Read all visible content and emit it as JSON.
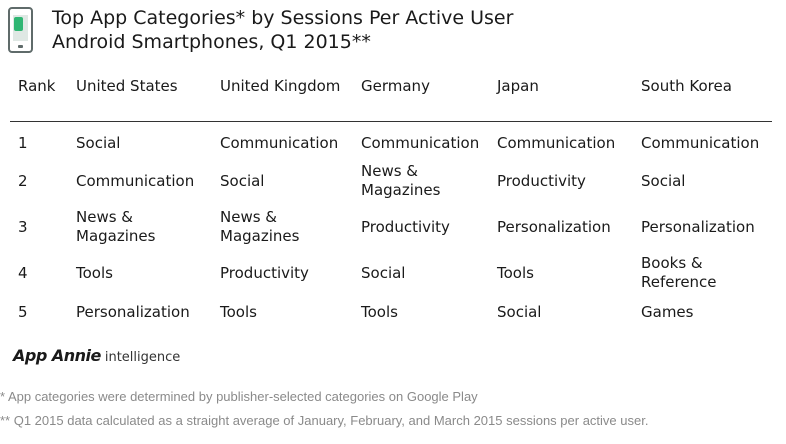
{
  "title_lines": [
    "Top App Categories* by Sessions Per Active User",
    "Android Smartphones, Q1 2015**"
  ],
  "icon": "smartphone-icon",
  "colors": {
    "accent": "#2fb673",
    "text": "#1a1a1a",
    "footnote": "#8a8a8a"
  },
  "chart_data": {
    "type": "table",
    "title": "Top App Categories* by Sessions Per Active User",
    "subtitle": "Android Smartphones, Q1 2015**",
    "columns": [
      "Rank",
      "United States",
      "United Kingdom",
      "Germany",
      "Japan",
      "South Korea"
    ],
    "rows": [
      [
        "1",
        "Social",
        "Communication",
        "Communication",
        "Communication",
        "Communication"
      ],
      [
        "2",
        "Communication",
        "Social",
        "News & Magazines",
        "Productivity",
        "Social"
      ],
      [
        "3",
        "News & Magazines",
        "News & Magazines",
        "Productivity",
        "Personalization",
        "Personalization"
      ],
      [
        "4",
        "Tools",
        "Productivity",
        "Social",
        "Tools",
        "Books & Reference"
      ],
      [
        "5",
        "Personalization",
        "Tools",
        "Tools",
        "Social",
        "Games"
      ]
    ]
  },
  "branding": {
    "brand": "App Annie",
    "product": "intelligence"
  },
  "footnotes": [
    "* App categories were determined by publisher-selected categories on Google Play",
    "** Q1 2015 data calculated as a straight average of January, February, and March 2015 sessions per active user."
  ]
}
